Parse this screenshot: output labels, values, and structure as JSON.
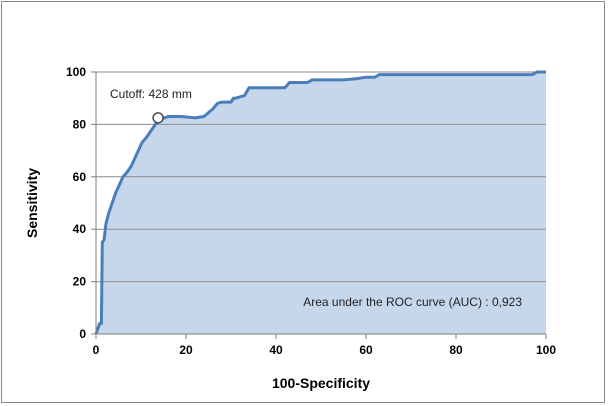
{
  "chart_data": {
    "type": "line",
    "title": "",
    "xlabel": "100-Specificity",
    "ylabel": "Sensitivity",
    "xlim": [
      0,
      100
    ],
    "ylim": [
      0,
      100
    ],
    "xticks": [
      "0",
      "20",
      "40",
      "60",
      "80",
      "100"
    ],
    "yticks": [
      "0",
      "20",
      "40",
      "60",
      "80",
      "100"
    ],
    "grid": "horizontal",
    "area_fill": true,
    "line_color": "#4a7ebb",
    "fill_color": "#c6d7ec",
    "series": [
      {
        "x": [
          0,
          0.8,
          1.2,
          1.4,
          1.8,
          2.2,
          2.8,
          3.6,
          4.4,
          5.2,
          6.0,
          7.0,
          7.8,
          8.6,
          9.4,
          10.2,
          11.2,
          12.4,
          13.6,
          14.4,
          16,
          19,
          22,
          24,
          26,
          27,
          28,
          30,
          30.5,
          31,
          33,
          34,
          38,
          42,
          43,
          45,
          47,
          48,
          53,
          55,
          58,
          60,
          62,
          63,
          65,
          70,
          80,
          90,
          97,
          98,
          100
        ],
        "y": [
          0,
          4,
          4,
          35,
          36,
          42,
          46,
          50,
          54,
          57,
          60,
          62,
          64,
          67,
          70,
          73,
          75,
          78,
          81,
          82,
          83,
          83,
          82.5,
          83,
          86,
          88,
          88.5,
          88.5,
          90,
          90,
          91,
          94,
          94,
          94,
          96,
          96,
          96,
          97,
          97,
          97,
          97.5,
          98,
          98,
          99,
          99,
          99,
          99,
          99,
          99,
          100,
          100
        ]
      }
    ],
    "cutoff_point": {
      "x": 13.8,
      "y": 82.5,
      "label": "Cutoff: 428 mm"
    },
    "annotation": "Area under the ROC curve (AUC) : 0,923"
  }
}
